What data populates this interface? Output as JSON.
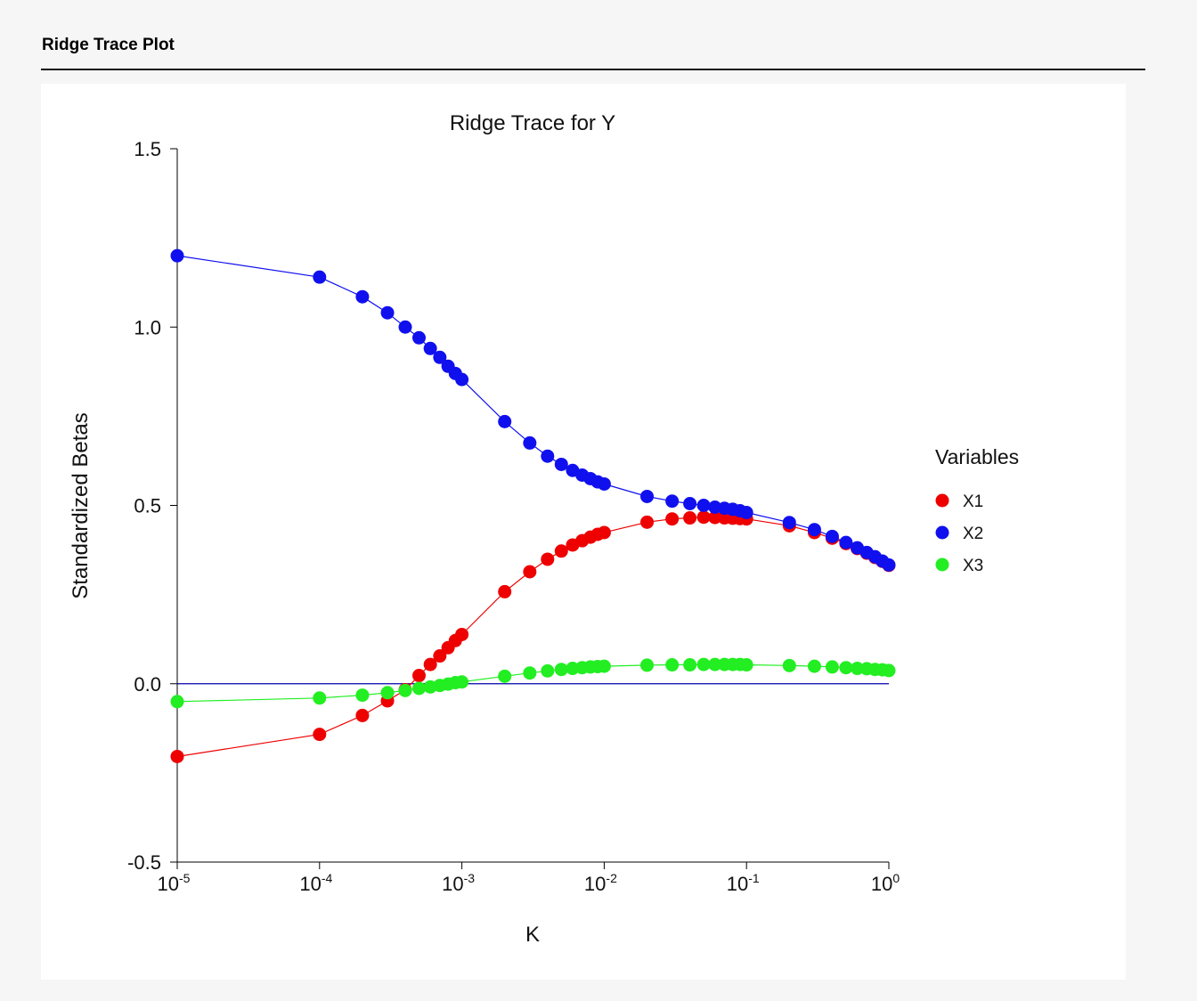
{
  "header": {
    "title": "Ridge Trace Plot"
  },
  "chart_data": {
    "type": "line",
    "title": "Ridge Trace for Y",
    "xlabel": "K",
    "ylabel": "Standardized Betas",
    "x_scale": "log10",
    "xlim": [
      1e-05,
      1
    ],
    "ylim": [
      -0.5,
      1.5
    ],
    "xticks": [
      {
        "value": 1e-05,
        "base": "10",
        "exp": "-5"
      },
      {
        "value": 0.0001,
        "base": "10",
        "exp": "-4"
      },
      {
        "value": 0.001,
        "base": "10",
        "exp": "-3"
      },
      {
        "value": 0.01,
        "base": "10",
        "exp": "-2"
      },
      {
        "value": 0.1,
        "base": "10",
        "exp": "-1"
      },
      {
        "value": 1,
        "base": "10",
        "exp": "0"
      }
    ],
    "yticks": [
      {
        "value": -0.5,
        "label": "-0.5"
      },
      {
        "value": 0.0,
        "label": "0.0"
      },
      {
        "value": 0.5,
        "label": "0.5"
      },
      {
        "value": 1.0,
        "label": "1.0"
      },
      {
        "value": 1.5,
        "label": "1.5"
      }
    ],
    "reference_line_y": 0,
    "reference_line_color": "#0000aa",
    "legend": {
      "title": "Variables",
      "position": "right"
    },
    "x": [
      1e-05,
      0.0001,
      0.0002,
      0.0003,
      0.0004,
      0.0005,
      0.0006,
      0.0007,
      0.0008,
      0.0009,
      0.001,
      0.002,
      0.003,
      0.004,
      0.005,
      0.006,
      0.007,
      0.008,
      0.009,
      0.01,
      0.02,
      0.03,
      0.04,
      0.05,
      0.06,
      0.07,
      0.08,
      0.09,
      0.1,
      0.2,
      0.3,
      0.4,
      0.5,
      0.6,
      0.7,
      0.8,
      0.9,
      1.0
    ],
    "series": [
      {
        "name": "X1",
        "color": "#ee0000",
        "values": [
          -0.204,
          -0.142,
          -0.089,
          -0.048,
          -0.017,
          0.023,
          0.054,
          0.078,
          0.101,
          0.121,
          0.138,
          0.258,
          0.314,
          0.349,
          0.372,
          0.389,
          0.401,
          0.411,
          0.419,
          0.424,
          0.453,
          0.462,
          0.465,
          0.467,
          0.466,
          0.465,
          0.464,
          0.463,
          0.462,
          0.443,
          0.424,
          0.408,
          0.393,
          0.379,
          0.366,
          0.354,
          0.343,
          0.332
        ]
      },
      {
        "name": "X2",
        "color": "#1010ee",
        "values": [
          1.2,
          1.14,
          1.085,
          1.04,
          1.0,
          0.97,
          0.94,
          0.915,
          0.89,
          0.87,
          0.853,
          0.735,
          0.675,
          0.638,
          0.615,
          0.598,
          0.585,
          0.575,
          0.566,
          0.56,
          0.525,
          0.512,
          0.505,
          0.5,
          0.495,
          0.492,
          0.489,
          0.485,
          0.48,
          0.452,
          0.432,
          0.413,
          0.396,
          0.381,
          0.368,
          0.356,
          0.344,
          0.333
        ]
      },
      {
        "name": "X3",
        "color": "#22ee22",
        "values": [
          -0.05,
          -0.04,
          -0.032,
          -0.025,
          -0.019,
          -0.013,
          -0.009,
          -0.005,
          -0.001,
          0.003,
          0.005,
          0.021,
          0.03,
          0.036,
          0.04,
          0.043,
          0.045,
          0.047,
          0.048,
          0.049,
          0.052,
          0.053,
          0.053,
          0.054,
          0.054,
          0.054,
          0.054,
          0.054,
          0.053,
          0.051,
          0.049,
          0.047,
          0.045,
          0.043,
          0.042,
          0.04,
          0.039,
          0.037
        ]
      }
    ]
  }
}
